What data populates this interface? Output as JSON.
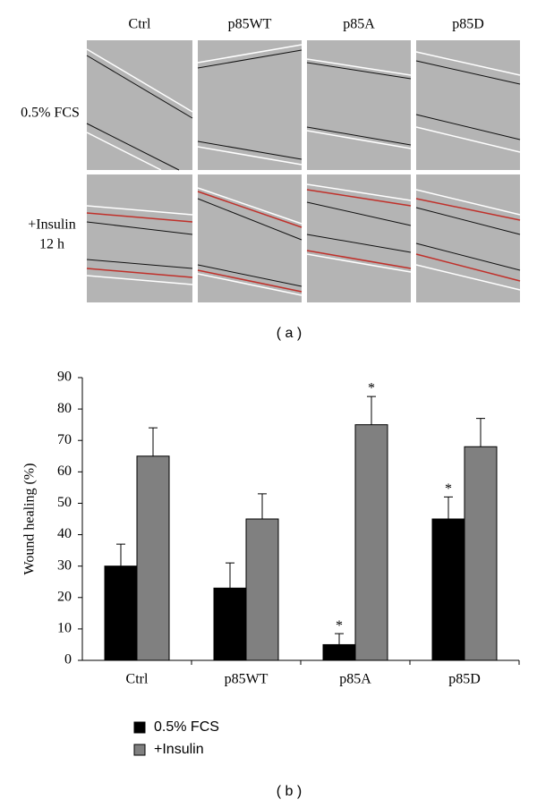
{
  "panel_a": {
    "columns": [
      "Ctrl",
      "p85WT",
      "p85A",
      "p85D"
    ],
    "rows": [
      "0.5% FCS",
      "+Insulin",
      "12 h"
    ],
    "caption": "( a )"
  },
  "chart_data": {
    "type": "bar",
    "caption": "( b )",
    "y_label": "Wound healing (%)",
    "categories": [
      "Ctrl",
      "p85WT",
      "p85A",
      "p85D"
    ],
    "series": [
      {
        "name": "0.5% FCS",
        "color": "#000000",
        "values": [
          30,
          23,
          5,
          45
        ],
        "errors": [
          7,
          8,
          3.5,
          7
        ],
        "significance": [
          null,
          null,
          "*",
          "*"
        ]
      },
      {
        "name": "+Insulin",
        "color": "#808080",
        "values": [
          65,
          45,
          75,
          68
        ],
        "errors": [
          9,
          8,
          9,
          9
        ],
        "significance": [
          null,
          null,
          "*",
          null
        ]
      }
    ],
    "ylim": [
      0,
      90
    ],
    "yticks": [
      0,
      10,
      20,
      30,
      40,
      50,
      60,
      70,
      80,
      90
    ],
    "grid": false,
    "legend": "bottom-left"
  }
}
